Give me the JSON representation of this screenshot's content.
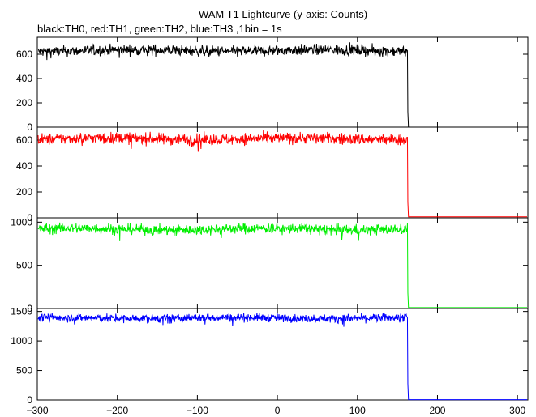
{
  "chart_data": {
    "type": "line",
    "title": "WAM T1 Lightcurve (y-axis: Counts)",
    "subtitle": "black:TH0, red:TH1, green:TH2, blue:TH3 ,1bin = 1s",
    "xlim": [
      -300,
      313
    ],
    "x_ticks": [
      -300,
      -200,
      -100,
      0,
      100,
      200,
      300
    ],
    "x_tick_labels": [
      "−300",
      "−200",
      "−100",
      "0",
      "100",
      "200",
      "300"
    ],
    "drop_x": 163,
    "grid": false,
    "panels": [
      {
        "series": "TH0",
        "color": "#000000",
        "ylim": [
          0,
          740
        ],
        "y_ticks": [
          0,
          200,
          400,
          600
        ],
        "y_tick_labels": [
          "0",
          "200",
          "400",
          "600"
        ],
        "level": 630,
        "noise": 22,
        "post_level": 0
      },
      {
        "series": "TH1",
        "color": "#ff0000",
        "ylim": [
          0,
          700
        ],
        "y_ticks": [
          0,
          200,
          400,
          600
        ],
        "y_tick_labels": [
          "0",
          "200",
          "400",
          "600"
        ],
        "level": 610,
        "noise": 22,
        "post_level": 8
      },
      {
        "series": "TH2",
        "color": "#00ee00",
        "ylim": [
          0,
          1050
        ],
        "y_ticks": [
          0,
          500,
          1000
        ],
        "y_tick_labels": [
          "0",
          "500",
          "1000"
        ],
        "level": 920,
        "noise": 30,
        "post_level": 10
      },
      {
        "series": "TH3",
        "color": "#0000ff",
        "ylim": [
          0,
          1550
        ],
        "y_ticks": [
          0,
          500,
          1000,
          1500
        ],
        "y_tick_labels": [
          "0",
          "500",
          "1000",
          "1500"
        ],
        "level": 1390,
        "noise": 35,
        "post_level": 5
      }
    ]
  }
}
